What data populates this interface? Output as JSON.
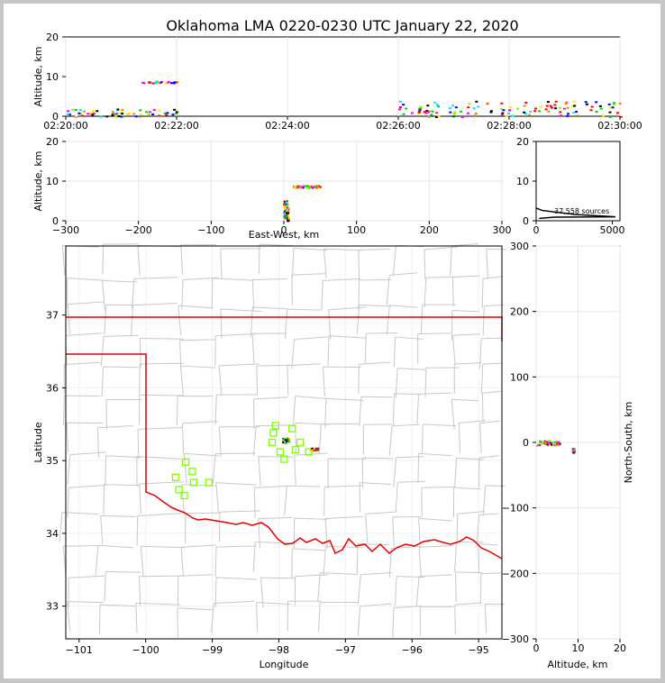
{
  "title": "Oklahoma LMA 0220-0230 UTC January 22, 2020",
  "chart_data": [
    {
      "id": "time-altitude",
      "type": "scatter",
      "ylabel": "Altitude, km",
      "xlim": [
        "02:20:00",
        "02:30:00"
      ],
      "ylim": [
        0,
        20
      ],
      "xticks": [
        "02:20:00",
        "02:22:00",
        "02:24:00",
        "02:26:00",
        "02:28:00",
        "02:30:00"
      ],
      "yticks": [
        "0",
        "10",
        "20"
      ],
      "grid": true,
      "series": [
        {
          "time_range": [
            "02:20:00",
            "02:22:00"
          ],
          "altitude_range_km": [
            0,
            2
          ]
        },
        {
          "time_range": [
            "02:21:20",
            "02:22:00"
          ],
          "altitude_range_km": [
            8.5,
            9
          ]
        },
        {
          "time_range": [
            "02:26:00",
            "02:30:00"
          ],
          "altitude_range_km": [
            0,
            4
          ]
        }
      ]
    },
    {
      "id": "east-west-altitude",
      "type": "scatter",
      "xlabel": "East-West, km",
      "ylabel": "Altitude, km",
      "xlim": [
        -300,
        300
      ],
      "ylim": [
        0,
        20
      ],
      "xticks": [
        "-300",
        "-200",
        "-100",
        "0",
        "100",
        "200",
        "300"
      ],
      "yticks": [
        "0",
        "10",
        "20"
      ],
      "grid": true,
      "series": [
        {
          "x_range_km": [
            -1,
            6
          ],
          "altitude_range_km": [
            0,
            5.5
          ]
        },
        {
          "x_range_km": [
            12,
            50
          ],
          "altitude_range_km": [
            8.5,
            9
          ]
        }
      ]
    },
    {
      "id": "altitude-histogram",
      "type": "line",
      "xlim": [
        0,
        5500
      ],
      "ylim": [
        0,
        20
      ],
      "xticks": [
        "0",
        "5000"
      ],
      "yticks": [
        "0",
        "10",
        "20"
      ],
      "annotation": "37,558 sources",
      "x": [
        200,
        1200,
        5200,
        2500,
        400,
        0
      ],
      "y": [
        0.6,
        0.9,
        1.0,
        1.6,
        2.6,
        3.2
      ]
    },
    {
      "id": "plan-view",
      "type": "scatter",
      "xlabel": "Longitude",
      "ylabel": "Latitude",
      "xlim": [
        -101.2,
        -94.65
      ],
      "ylim": [
        32.55,
        37.95
      ],
      "xticks": [
        "-101",
        "-100",
        "-99",
        "-98",
        "-97",
        "-96",
        "-95"
      ],
      "yticks": [
        "33",
        "34",
        "35",
        "36",
        "37"
      ],
      "stations": [
        [
          -98.05,
          35.48
        ],
        [
          -98.08,
          35.38
        ],
        [
          -98.1,
          35.25
        ],
        [
          -97.98,
          35.12
        ],
        [
          -97.92,
          35.02
        ],
        [
          -97.8,
          35.44
        ],
        [
          -97.75,
          35.15
        ],
        [
          -97.68,
          35.25
        ],
        [
          -97.55,
          35.12
        ],
        [
          -99.4,
          34.98
        ],
        [
          -99.3,
          34.85
        ],
        [
          -99.55,
          34.77
        ],
        [
          -99.28,
          34.7
        ],
        [
          -99.05,
          34.7
        ],
        [
          -99.5,
          34.6
        ],
        [
          -99.42,
          34.52
        ]
      ],
      "sources": [
        {
          "lon_range": [
            -97.95,
            -97.85
          ],
          "lat_range": [
            35.25,
            35.32
          ]
        },
        {
          "lon_range": [
            -97.55,
            -97.42
          ],
          "lat_range": [
            35.15,
            35.18
          ]
        }
      ]
    },
    {
      "id": "altitude-northsouth",
      "type": "scatter",
      "xlabel": "Altitude, km",
      "ylabel": "North-South, km",
      "xlim": [
        0,
        20
      ],
      "ylim": [
        -300,
        300
      ],
      "xticks": [
        "0",
        "10",
        "20"
      ],
      "yticks": [
        "300",
        "200",
        "100",
        "0",
        "−100",
        "−200",
        "−300"
      ],
      "series": [
        {
          "altitude_range_km": [
            0,
            5.5
          ],
          "ns_range_km": [
            -4,
            4
          ]
        },
        {
          "altitude_range_km": [
            8.5,
            9
          ],
          "ns_range_km": [
            -15,
            -8
          ]
        }
      ]
    }
  ]
}
